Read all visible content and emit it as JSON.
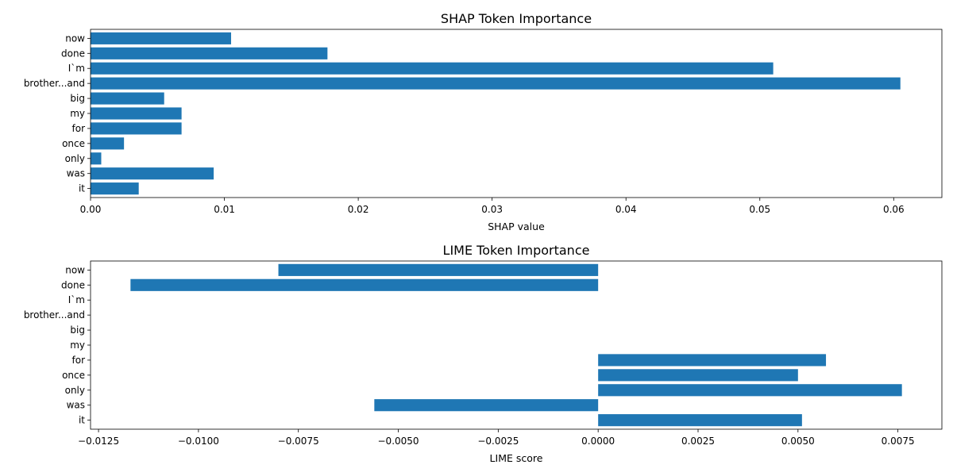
{
  "chart_data": [
    {
      "type": "bar",
      "orientation": "horizontal",
      "title": "SHAP Token Importance",
      "xlabel": "SHAP value",
      "ylabel": "",
      "color": "#1f77b4",
      "categories": [
        "now",
        "done",
        "I`m",
        "brother...and",
        "big",
        "my",
        "for",
        "once",
        "only",
        "was",
        "it"
      ],
      "values": [
        0.0105,
        0.0177,
        0.051,
        0.0605,
        0.0055,
        0.0068,
        0.0068,
        0.0025,
        0.0008,
        0.0092,
        0.0036
      ],
      "xlim": [
        0,
        0.0636
      ],
      "xticks": [
        0.0,
        0.01,
        0.02,
        0.03,
        0.04,
        0.05,
        0.06
      ],
      "xtick_labels": [
        "0.00",
        "0.01",
        "0.02",
        "0.03",
        "0.04",
        "0.05",
        "0.06"
      ],
      "grid": false
    },
    {
      "type": "bar",
      "orientation": "horizontal",
      "title": "LIME Token Importance",
      "xlabel": "LIME score",
      "ylabel": "",
      "color": "#1f77b4",
      "categories": [
        "now",
        "done",
        "I`m",
        "brother...and",
        "big",
        "my",
        "for",
        "once",
        "only",
        "was",
        "it"
      ],
      "values": [
        -0.008,
        -0.0117,
        0,
        0,
        0,
        0,
        0.0057,
        0.005,
        0.0076,
        -0.0056,
        0.0051
      ],
      "xlim": [
        -0.0127,
        0.0086
      ],
      "xticks": [
        -0.0125,
        -0.01,
        -0.0075,
        -0.005,
        -0.0025,
        0.0,
        0.0025,
        0.005,
        0.0075
      ],
      "xtick_labels": [
        "−0.0125",
        "−0.0100",
        "−0.0075",
        "−0.0050",
        "−0.0025",
        "0.0000",
        "0.0025",
        "0.0050",
        "0.0075"
      ],
      "grid": false
    }
  ]
}
